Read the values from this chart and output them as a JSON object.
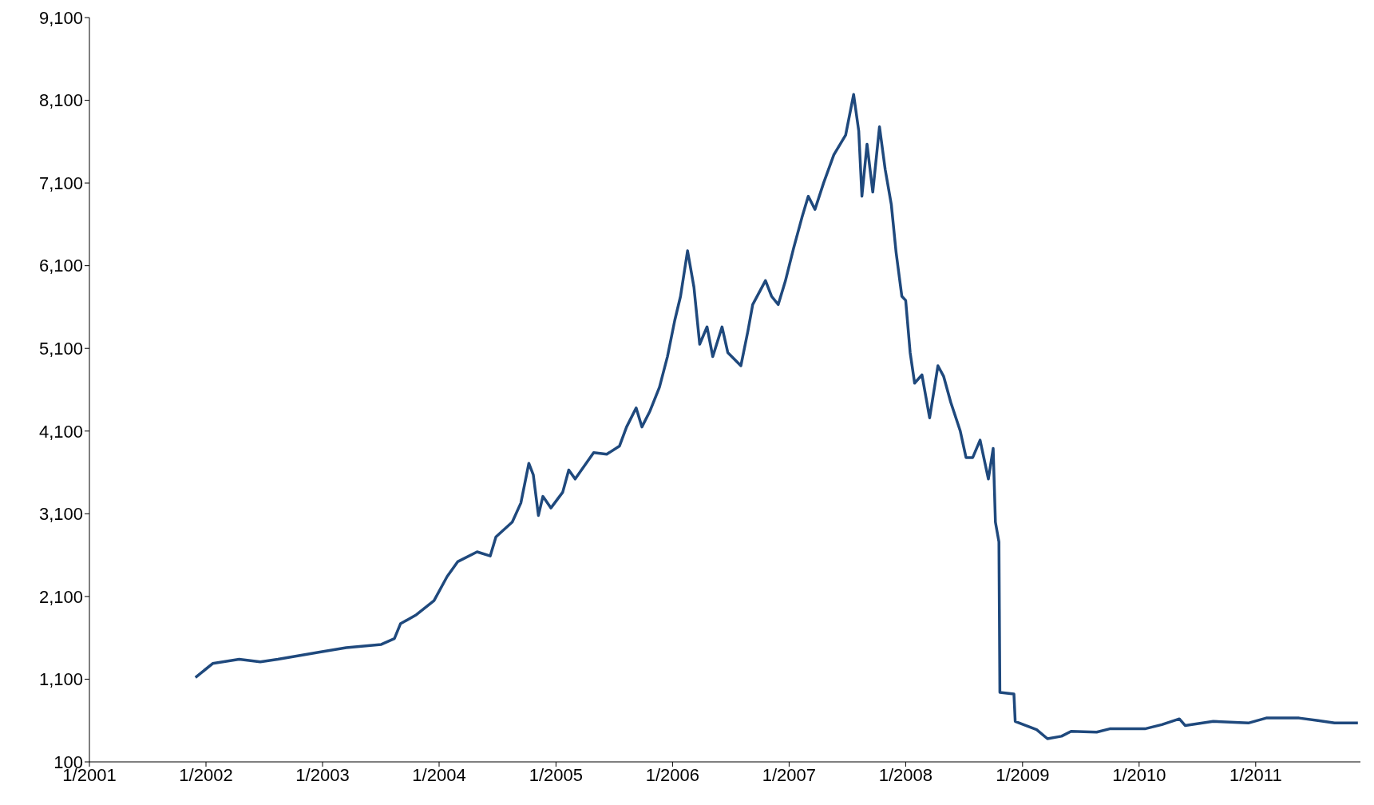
{
  "chart_data": {
    "type": "line",
    "marker": "none",
    "line_style": "solid",
    "xlim": [
      "2001-01-01",
      "2011-11-25"
    ],
    "xticks": [
      {
        "value": "2001-01-01",
        "label": "1/2001"
      },
      {
        "value": "2002-01-01",
        "label": "1/2002"
      },
      {
        "value": "2003-01-01",
        "label": "1/2003"
      },
      {
        "value": "2004-01-01",
        "label": "1/2004"
      },
      {
        "value": "2005-01-01",
        "label": "1/2005"
      },
      {
        "value": "2006-01-01",
        "label": "1/2006"
      },
      {
        "value": "2007-01-01",
        "label": "1/2007"
      },
      {
        "value": "2008-01-01",
        "label": "1/2008"
      },
      {
        "value": "2009-01-01",
        "label": "1/2009"
      },
      {
        "value": "2010-01-01",
        "label": "1/2010"
      },
      {
        "value": "2011-01-01",
        "label": "1/2011"
      }
    ],
    "ylim": [
      100,
      9100
    ],
    "yticks": [
      {
        "value": 100,
        "label": "100"
      },
      {
        "value": 1100,
        "label": "1,100"
      },
      {
        "value": 2100,
        "label": "2,100"
      },
      {
        "value": 3100,
        "label": "3,100"
      },
      {
        "value": 4100,
        "label": "4,100"
      },
      {
        "value": 5100,
        "label": "5,100"
      },
      {
        "value": 6100,
        "label": "6,100"
      },
      {
        "value": 7100,
        "label": "7,100"
      },
      {
        "value": 8100,
        "label": "8,100"
      },
      {
        "value": 9100,
        "label": "9,100"
      }
    ],
    "x": [
      "2001-11-29",
      "2002-01-22",
      "2002-04-15",
      "2002-06-20",
      "2002-08-14",
      "2002-12-27",
      "2003-03-16",
      "2003-07-04",
      "2003-08-14",
      "2003-09-02",
      "2003-10-22",
      "2003-12-16",
      "2004-01-26",
      "2004-02-28",
      "2004-04-29",
      "2004-06-09",
      "2004-06-27",
      "2004-08-17",
      "2004-09-13",
      "2004-10-08",
      "2004-10-22",
      "2004-11-07",
      "2004-11-21",
      "2004-12-16",
      "2005-01-22",
      "2005-02-10",
      "2005-03-02",
      "2005-04-29",
      "2005-06-09",
      "2005-07-19",
      "2005-08-10",
      "2005-09-09",
      "2005-09-27",
      "2005-10-22",
      "2005-11-21",
      "2005-12-16",
      "2006-01-08",
      "2006-01-26",
      "2006-02-17",
      "2006-03-09",
      "2006-03-27",
      "2006-04-19",
      "2006-05-07",
      "2006-06-05",
      "2006-06-23",
      "2006-08-03",
      "2006-08-25",
      "2006-09-09",
      "2006-10-19",
      "2006-11-07",
      "2006-11-28",
      "2006-12-20",
      "2007-01-15",
      "2007-02-10",
      "2007-03-02",
      "2007-03-23",
      "2007-04-19",
      "2007-05-21",
      "2007-06-27",
      "2007-07-22",
      "2007-08-07",
      "2007-08-17",
      "2007-09-02",
      "2007-09-20",
      "2007-10-11",
      "2007-10-29",
      "2007-11-17",
      "2007-12-02",
      "2007-12-20",
      "2008-01-01",
      "2008-01-15",
      "2008-01-29",
      "2008-02-21",
      "2008-03-16",
      "2008-04-11",
      "2008-04-29",
      "2008-05-21",
      "2008-06-20",
      "2008-07-08",
      "2008-07-29",
      "2008-08-21",
      "2008-09-16",
      "2008-10-01",
      "2008-10-08",
      "2008-10-19",
      "2008-10-22",
      "2008-12-05",
      "2008-12-09",
      "2009-02-14",
      "2009-03-20",
      "2009-05-03",
      "2009-06-02",
      "2009-08-21",
      "2009-10-01",
      "2010-01-19",
      "2010-03-13",
      "2010-05-07",
      "2010-05-25",
      "2010-08-21",
      "2010-12-09",
      "2011-02-03",
      "2011-05-17",
      "2011-07-15",
      "2011-09-05",
      "2011-11-17"
    ],
    "series": [
      {
        "color": "#1f497d",
        "values": [
          1120,
          1290,
          1340,
          1310,
          1340,
          1430,
          1480,
          1520,
          1590,
          1770,
          1880,
          2050,
          2340,
          2520,
          2640,
          2590,
          2820,
          3000,
          3230,
          3710,
          3570,
          3080,
          3310,
          3170,
          3360,
          3630,
          3520,
          3840,
          3820,
          3920,
          4150,
          4380,
          4150,
          4340,
          4630,
          5000,
          5440,
          5730,
          6280,
          5840,
          5150,
          5360,
          5000,
          5360,
          5050,
          4890,
          5310,
          5630,
          5920,
          5730,
          5630,
          5910,
          6310,
          6680,
          6940,
          6780,
          7100,
          7440,
          7680,
          8170,
          7730,
          6940,
          7570,
          6990,
          7780,
          7260,
          6840,
          6260,
          5730,
          5680,
          5050,
          4680,
          4780,
          4260,
          4890,
          4760,
          4450,
          4100,
          3780,
          3780,
          3990,
          3520,
          3890,
          3000,
          2760,
          940,
          920,
          590,
          490,
          380,
          410,
          470,
          460,
          500,
          500,
          550,
          620,
          540,
          590,
          570,
          630,
          630,
          600,
          570,
          570
        ]
      }
    ]
  }
}
